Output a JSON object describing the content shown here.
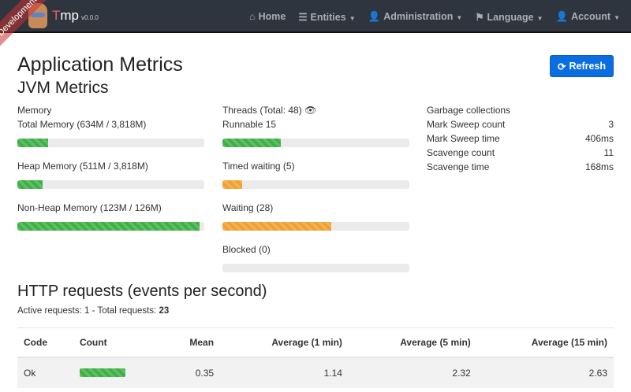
{
  "navbar": {
    "brand": "Tmp",
    "version": "v0.0.0",
    "ribbon": "Development",
    "items": [
      {
        "label": "Home",
        "icon": "home-icon"
      },
      {
        "label": "Entities",
        "icon": "list-icon",
        "dropdown": true
      },
      {
        "label": "Administration",
        "icon": "user-plus-icon",
        "dropdown": true
      },
      {
        "label": "Language",
        "icon": "flag-icon",
        "dropdown": true
      },
      {
        "label": "Account",
        "icon": "user-icon",
        "dropdown": true
      }
    ]
  },
  "page": {
    "title": "Application Metrics",
    "refresh_label": "Refresh",
    "jvm_title": "JVM Metrics"
  },
  "memory": {
    "title": "Memory",
    "items": [
      {
        "label": "Total Memory (634M / 3,818M)",
        "percent": 16.6,
        "color": "#3cb043"
      },
      {
        "label": "Heap Memory (511M / 3,818M)",
        "percent": 13.4,
        "color": "#3cb043"
      },
      {
        "label": "Non-Heap Memory (123M / 126M)",
        "percent": 97.6,
        "color": "#3cb043"
      }
    ]
  },
  "threads": {
    "title": "Threads (Total: 48)",
    "items": [
      {
        "label": "Runnable 15",
        "percent": 31.25,
        "color": "#3cb043"
      },
      {
        "label": "Timed waiting (5)",
        "percent": 10.4,
        "color": "#f0a030"
      },
      {
        "label": "Waiting (28)",
        "percent": 58.3,
        "color": "#f0a030"
      },
      {
        "label": "Blocked (0)",
        "percent": 0,
        "color": "#d9534f"
      }
    ]
  },
  "gc": {
    "title": "Garbage collections",
    "rows": [
      {
        "label": "Mark Sweep count",
        "value": "3"
      },
      {
        "label": "Mark Sweep time",
        "value": "406ms"
      },
      {
        "label": "Scavenge count",
        "value": "11"
      },
      {
        "label": "Scavenge time",
        "value": "168ms"
      }
    ]
  },
  "http": {
    "title": "HTTP requests (events per second)",
    "active_label": "Active requests:",
    "active": "1",
    "total_label": "- Total requests:",
    "total": "23",
    "columns": [
      "Code",
      "Count",
      "Mean",
      "Average (1 min)",
      "Average (5 min)",
      "Average (15 min)"
    ],
    "rows": [
      {
        "code": "Ok",
        "count_percent": 100,
        "mean": "0.35",
        "avg1": "1.14",
        "avg5": "2.32",
        "avg15": "2.63"
      }
    ]
  }
}
